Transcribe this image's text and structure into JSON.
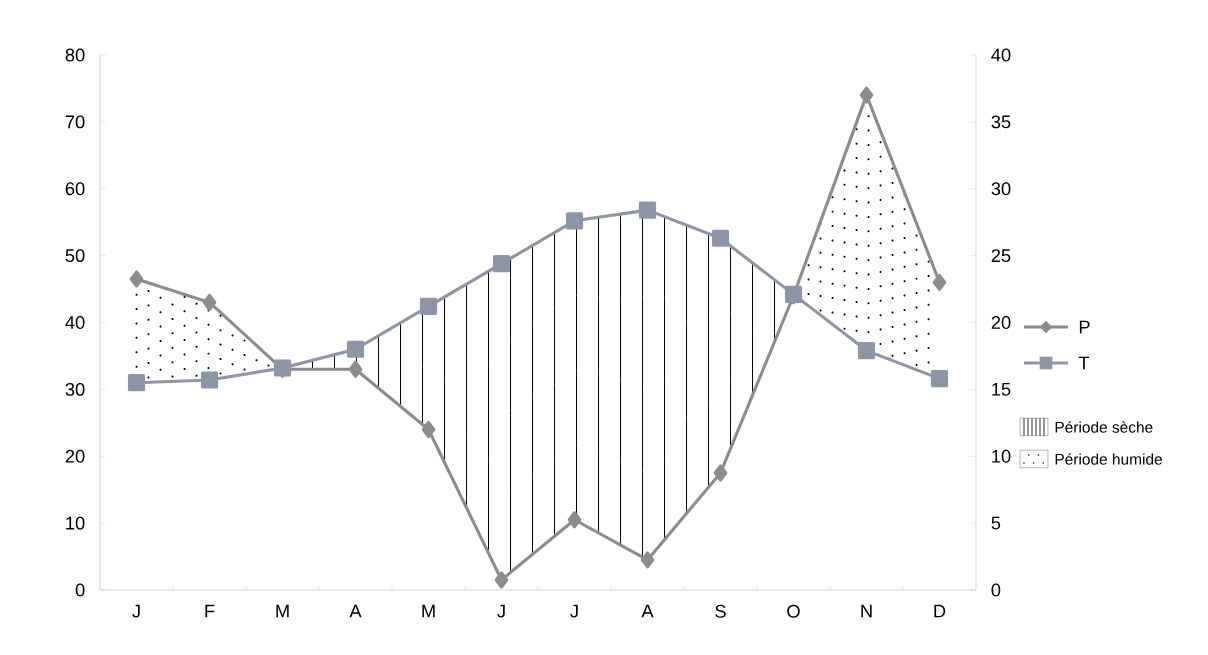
{
  "chart_data": {
    "type": "line",
    "categories": [
      "J",
      "F",
      "M",
      "A",
      "M",
      "J",
      "J",
      "A",
      "S",
      "O",
      "N",
      "D"
    ],
    "series": [
      {
        "name": "P",
        "color": "#8c8c8c",
        "marker": "diamond",
        "values": [
          46.5,
          43,
          33,
          33,
          24,
          1.5,
          10.5,
          4.5,
          17.5,
          44,
          74,
          46
        ]
      },
      {
        "name": "T",
        "color": "#8c96a6",
        "marker": "square",
        "axis": "y2",
        "values": [
          15.5,
          15.7,
          16.6,
          18,
          21.2,
          24.4,
          27.6,
          28.4,
          26.3,
          22.1,
          17.9,
          15.8
        ]
      }
    ],
    "ylim": [
      0,
      80
    ],
    "yticks": [
      0,
      10,
      20,
      30,
      40,
      50,
      60,
      70,
      80
    ],
    "y2lim": [
      0,
      40
    ],
    "y2ticks": [
      0,
      5,
      10,
      15,
      20,
      25,
      30,
      35,
      40
    ],
    "annotations": [
      "Période sèche",
      "Période humide"
    ],
    "legend": "right"
  }
}
